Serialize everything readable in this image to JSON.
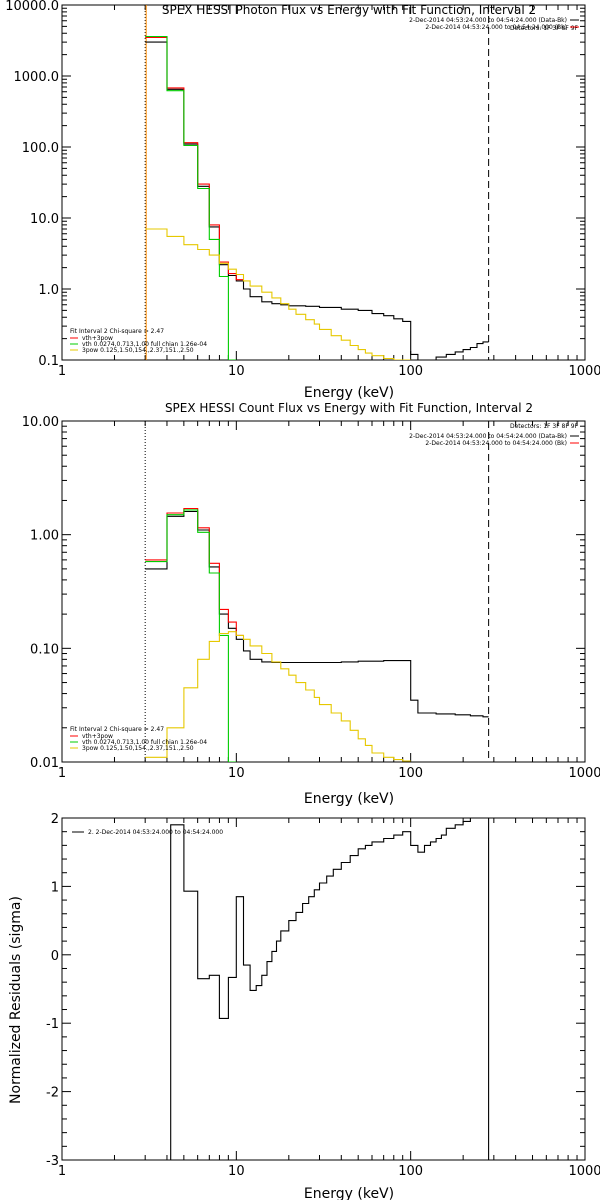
{
  "colors": {
    "background": "#ffffff",
    "axes": "#000000",
    "black": "#000000",
    "red": "#ff0000",
    "green": "#00cc00",
    "yellow": "#e6c800",
    "orange": "#ff8c00"
  },
  "chart_data": [
    {
      "type": "line",
      "title": "SPEX HESSI Photon Flux vs Energy with Fit Function, Interval 2",
      "xlabel": "Energy (keV)",
      "ylabel": "",
      "xscale": "log",
      "yscale": "log",
      "xlim": [
        1,
        1000
      ],
      "ylim": [
        0.1,
        10000
      ],
      "xticks": [
        1,
        10,
        100,
        1000
      ],
      "xtick_labels": [
        "1",
        "10",
        "100",
        "1000"
      ],
      "yticks": [
        0.1,
        1,
        10,
        100,
        1000,
        10000
      ],
      "ytick_labels": [
        "0.1",
        "1.0",
        "10.0",
        "100.0",
        "1000.0",
        "10000.0"
      ],
      "vlines": [
        {
          "x": 3,
          "style": "dotted",
          "color": "black"
        },
        {
          "x": 3,
          "style": "solid",
          "color": "orange"
        },
        {
          "x": 280,
          "style": "dashed",
          "color": "black"
        }
      ],
      "top_legend": {
        "header": "Detectors: 1F 3F 8F 9F",
        "entries": [
          {
            "text": "2-Dec-2014 04:53:24.000 to 04:54:24.000 (Data-Bk)",
            "color": "black"
          },
          {
            "text": "2-Dec-2014 04:53:24.000 to 04:54:24.000 (Bk)",
            "color": "red"
          }
        ]
      },
      "fit_legend": {
        "header": "Fit Interval 2   Chi-square = 2.47",
        "entries": [
          {
            "text": "vth+3pow",
            "color": "red"
          },
          {
            "text": "vth 0.0274,0.713,1.00  full chian 1.26e-04",
            "color": "green"
          },
          {
            "text": "3pow 0.125,1.50,154.,2.37,151.,2.50",
            "color": "yellow"
          }
        ]
      },
      "series": [
        {
          "color": "black",
          "edges": [
            3,
            4,
            5,
            6,
            7,
            8,
            9,
            10,
            11,
            12,
            14,
            16,
            18,
            20,
            25,
            30,
            40,
            50,
            60,
            70,
            80,
            90,
            100,
            110,
            120,
            140,
            160,
            180,
            200,
            220,
            240,
            260,
            280
          ],
          "values": [
            3000,
            650,
            110,
            28,
            7.5,
            2.2,
            1.55,
            1.3,
            1.0,
            0.78,
            0.66,
            0.62,
            0.6,
            0.58,
            0.57,
            0.55,
            0.52,
            0.5,
            0.45,
            0.42,
            0.38,
            0.35,
            0.12,
            0.1,
            0.1,
            0.11,
            0.12,
            0.13,
            0.14,
            0.15,
            0.17,
            0.18
          ]
        },
        {
          "color": "red",
          "edges": [
            3,
            4,
            5,
            6,
            7,
            8,
            9,
            10,
            11
          ],
          "values": [
            3500,
            680,
            115,
            30,
            8,
            2.4,
            1.65,
            1.35
          ]
        },
        {
          "color": "green",
          "edges": [
            3,
            4,
            5,
            6,
            7,
            8,
            9,
            10
          ],
          "values": [
            3600,
            620,
            105,
            26,
            5,
            1.5,
            0.1
          ]
        },
        {
          "color": "yellow",
          "edges": [
            3,
            4,
            5,
            6,
            7,
            8,
            9,
            10,
            11,
            12,
            14,
            16,
            18,
            20,
            22,
            25,
            28,
            30,
            35,
            40,
            45,
            50,
            55,
            60,
            70,
            80,
            90,
            100
          ],
          "values": [
            7.0,
            5.5,
            4.2,
            3.6,
            3.0,
            2.3,
            1.9,
            1.6,
            1.3,
            1.1,
            0.9,
            0.75,
            0.62,
            0.52,
            0.44,
            0.37,
            0.32,
            0.27,
            0.22,
            0.19,
            0.16,
            0.14,
            0.125,
            0.115,
            0.105,
            0.1,
            0.1
          ]
        }
      ]
    },
    {
      "type": "line",
      "title": "SPEX HESSI Count Flux vs Energy with Fit Function, Interval 2",
      "xlabel": "Energy (keV)",
      "ylabel": "",
      "xscale": "log",
      "yscale": "log",
      "xlim": [
        1,
        1000
      ],
      "ylim": [
        0.01,
        10
      ],
      "xticks": [
        1,
        10,
        100,
        1000
      ],
      "xtick_labels": [
        "1",
        "10",
        "100",
        "1000"
      ],
      "yticks": [
        0.01,
        0.1,
        1,
        10
      ],
      "ytick_labels": [
        "0.01",
        "0.10",
        "1.00",
        "10.00"
      ],
      "vlines": [
        {
          "x": 3,
          "style": "dotted",
          "color": "black"
        },
        {
          "x": 280,
          "style": "dashed",
          "color": "black"
        }
      ],
      "top_legend": {
        "header": "Detectors: 1F 3F 8F 9F",
        "entries": [
          {
            "text": "2-Dec-2014 04:53:24.000 to 04:54:24.000 (Data-Bk)",
            "color": "black"
          },
          {
            "text": "2-Dec-2014 04:53:24.000 to 04:54:24.000 (Bk)",
            "color": "red"
          }
        ]
      },
      "fit_legend": {
        "header": "Fit Interval 2   Chi-square = 2.47",
        "entries": [
          {
            "text": "vth+3pow",
            "color": "red"
          },
          {
            "text": "vth 0.0274,0.713,1.00  full chian 1.26e-04",
            "color": "green"
          },
          {
            "text": "3pow 0.125,1.50,154.,2.37,151.,2.50",
            "color": "yellow"
          }
        ]
      },
      "series": [
        {
          "color": "black",
          "edges": [
            3,
            4,
            5,
            6,
            7,
            8,
            9,
            10,
            11,
            12,
            14,
            16,
            18,
            20,
            25,
            30,
            40,
            50,
            60,
            70,
            80,
            90,
            100,
            110,
            120,
            140,
            160,
            180,
            200,
            220,
            240,
            260,
            280
          ],
          "values": [
            0.5,
            1.45,
            1.6,
            1.1,
            0.52,
            0.2,
            0.15,
            0.12,
            0.095,
            0.08,
            0.076,
            0.075,
            0.075,
            0.075,
            0.075,
            0.075,
            0.076,
            0.077,
            0.077,
            0.078,
            0.078,
            0.078,
            0.035,
            0.027,
            0.027,
            0.0265,
            0.0265,
            0.026,
            0.026,
            0.0255,
            0.0255,
            0.025
          ]
        },
        {
          "color": "red",
          "edges": [
            3,
            4,
            5,
            6,
            7,
            8,
            9,
            10,
            11
          ],
          "values": [
            0.6,
            1.55,
            1.7,
            1.15,
            0.56,
            0.22,
            0.17,
            0.13
          ]
        },
        {
          "color": "green",
          "edges": [
            3,
            4,
            5,
            6,
            7,
            8,
            9,
            10
          ],
          "values": [
            0.58,
            1.5,
            1.65,
            1.05,
            0.46,
            0.13,
            0.01
          ]
        },
        {
          "color": "yellow",
          "edges": [
            3,
            4,
            5,
            6,
            7,
            8,
            9,
            10,
            11,
            12,
            14,
            16,
            18,
            20,
            22,
            25,
            28,
            30,
            35,
            40,
            45,
            50,
            55,
            60,
            70,
            80,
            90,
            100
          ],
          "values": [
            0.011,
            0.02,
            0.045,
            0.08,
            0.115,
            0.135,
            0.14,
            0.13,
            0.12,
            0.105,
            0.09,
            0.076,
            0.066,
            0.058,
            0.05,
            0.043,
            0.037,
            0.032,
            0.027,
            0.023,
            0.019,
            0.016,
            0.014,
            0.012,
            0.011,
            0.0105,
            0.0102
          ]
        }
      ]
    },
    {
      "type": "line",
      "title": "",
      "xlabel": "Energy (keV)",
      "ylabel": "Normalized Residuals (sigma)",
      "xscale": "log",
      "yscale": "linear",
      "xlim": [
        1,
        1000
      ],
      "ylim": [
        -3,
        2
      ],
      "xticks": [
        1,
        10,
        100,
        1000
      ],
      "xtick_labels": [
        "1",
        "10",
        "100",
        "1000"
      ],
      "yticks": [
        -3,
        -2,
        -1,
        0,
        1,
        2
      ],
      "ytick_labels": [
        "-3",
        "-2",
        "-1",
        "0",
        "1",
        "2"
      ],
      "vlines": [],
      "top_legend": {
        "header": "",
        "entries": [
          {
            "text": "2.  2-Dec-2014 04:53:24.000 to 04:54:24.000",
            "color": "black"
          }
        ]
      },
      "fit_legend": {
        "header": "",
        "entries": []
      },
      "series": [
        {
          "color": "black",
          "edges": [
            4.2,
            5,
            6,
            7,
            8,
            9,
            10,
            11,
            12,
            13,
            14,
            15,
            16,
            17,
            18,
            20,
            22,
            24,
            26,
            28,
            30,
            33,
            36,
            40,
            45,
            50,
            55,
            60,
            70,
            80,
            90,
            100,
            110,
            120,
            130,
            140,
            150,
            160,
            180,
            200,
            220,
            240,
            260,
            280
          ],
          "values": [
            1.9,
            0.93,
            -0.35,
            -0.3,
            -0.93,
            -0.33,
            0.85,
            -0.15,
            -0.52,
            -0.45,
            -0.3,
            -0.1,
            0.05,
            0.2,
            0.35,
            0.5,
            0.62,
            0.75,
            0.85,
            0.95,
            1.05,
            1.15,
            1.25,
            1.35,
            1.45,
            1.55,
            1.6,
            1.65,
            1.7,
            1.75,
            1.8,
            1.6,
            1.5,
            1.6,
            1.65,
            1.7,
            1.75,
            1.85,
            1.9,
            1.95,
            2.0,
            2.02,
            2.05
          ],
          "drop_start": -3.1,
          "drop_end": -3.1
        }
      ]
    }
  ]
}
